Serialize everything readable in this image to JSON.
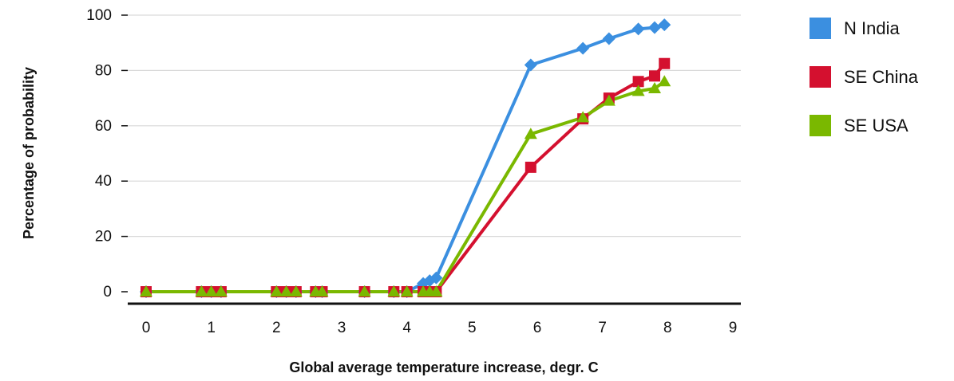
{
  "chart_data": {
    "type": "line",
    "xlabel": "Global average temperature increase, degr. C",
    "ylabel": "Percentage of probability",
    "xlim": [
      0,
      9
    ],
    "ylim": [
      0,
      100
    ],
    "x_ticks": [
      "0",
      "1",
      "2",
      "3",
      "4",
      "5",
      "6",
      "7",
      "8",
      "9"
    ],
    "y_ticks": [
      "0",
      "20",
      "40",
      "60",
      "80",
      "100"
    ],
    "grid": "horizontal",
    "legend_position": "right",
    "series": [
      {
        "name": "N India",
        "color": "#3b8fe0",
        "marker": "diamond",
        "x": [
          0,
          0.85,
          1,
          1.15,
          2,
          2.15,
          2.3,
          2.6,
          2.7,
          3.35,
          3.8,
          4,
          4.25,
          4.35,
          4.45,
          5.9,
          6.7,
          7.1,
          7.55,
          7.8,
          7.95
        ],
        "y": [
          0,
          0,
          0,
          0,
          0,
          0,
          0,
          0,
          0,
          0,
          0,
          0,
          3,
          4,
          5,
          82,
          88,
          91.5,
          95,
          95.5,
          96.5
        ]
      },
      {
        "name": "SE China",
        "color": "#d4102f",
        "marker": "square",
        "x": [
          0,
          0.85,
          1,
          1.15,
          2,
          2.15,
          2.3,
          2.6,
          2.7,
          3.35,
          3.8,
          4,
          4.25,
          4.35,
          4.45,
          5.9,
          6.7,
          7.1,
          7.55,
          7.8,
          7.95
        ],
        "y": [
          0,
          0,
          0,
          0,
          0,
          0,
          0,
          0,
          0,
          0,
          0,
          0,
          0,
          0,
          0,
          45,
          62.5,
          70,
          76,
          78,
          82.5
        ]
      },
      {
        "name": "SE USA",
        "color": "#7ab800",
        "marker": "triangle",
        "x": [
          0,
          0.85,
          1,
          1.15,
          2,
          2.15,
          2.3,
          2.6,
          2.7,
          3.35,
          3.8,
          4,
          4.25,
          4.35,
          4.45,
          5.9,
          6.7,
          7.1,
          7.55,
          7.8,
          7.95
        ],
        "y": [
          0,
          0,
          0,
          0,
          0,
          0,
          0,
          0,
          0,
          0,
          0,
          0,
          0,
          0,
          0,
          57,
          63,
          69,
          72.5,
          73.5,
          76
        ]
      }
    ]
  }
}
